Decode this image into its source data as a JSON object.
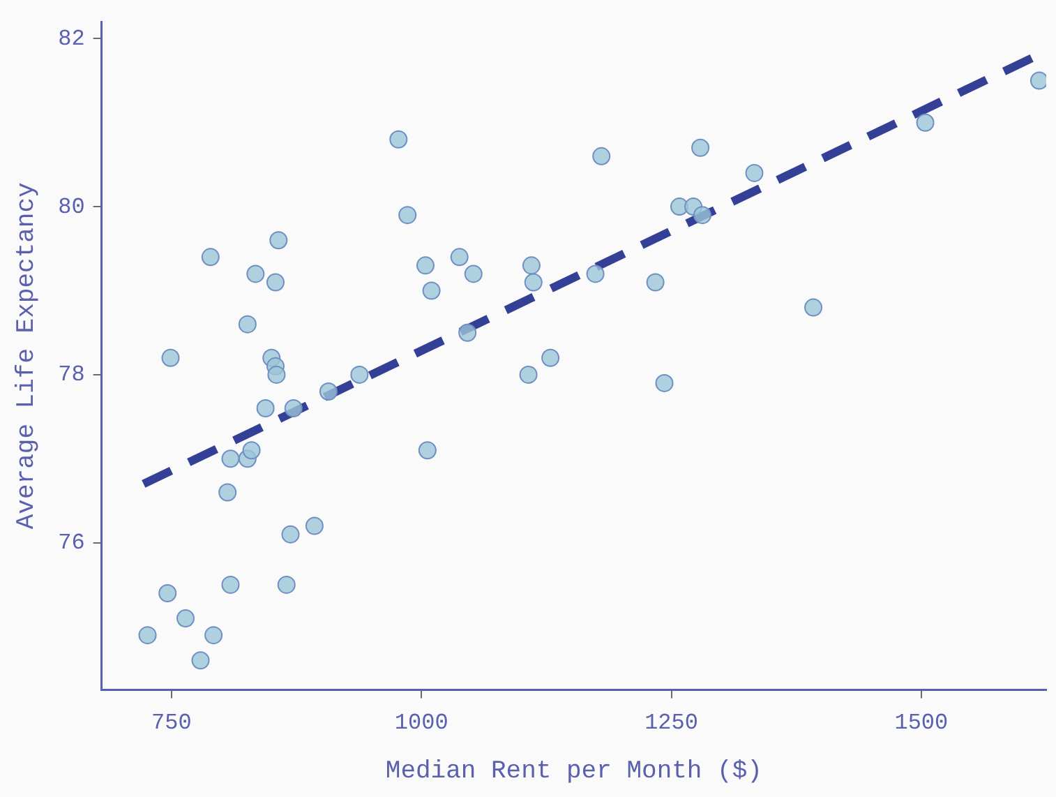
{
  "chart_data": {
    "type": "scatter",
    "xlabel": "Median Rent per Month ($)",
    "ylabel": "Average Life Expectancy",
    "xlim": [
      680,
      1625
    ],
    "ylim": [
      74.25,
      82.2
    ],
    "xticks": [
      750,
      1000,
      1250,
      1500
    ],
    "yticks": [
      76,
      78,
      80,
      82
    ],
    "grid": false,
    "legend": false,
    "marker": "circle",
    "series": [
      {
        "type": "scatter",
        "color": "#9cc6d8",
        "x": [
          726,
          746,
          749,
          764,
          779,
          789,
          792,
          806,
          809,
          809,
          826,
          826,
          830,
          834,
          844,
          850,
          854,
          854,
          855,
          857,
          865,
          869,
          872,
          893,
          907,
          938,
          977,
          986,
          1004,
          1006,
          1010,
          1038,
          1046,
          1052,
          1107,
          1110,
          1112,
          1129,
          1174,
          1180,
          1234,
          1243,
          1258,
          1272,
          1281,
          1279,
          1333,
          1392,
          1504,
          1618
        ],
        "values": [
          74.9,
          75.4,
          78.2,
          75.1,
          74.6,
          79.4,
          74.9,
          76.6,
          77.0,
          75.5,
          78.6,
          77.0,
          77.1,
          79.2,
          77.6,
          78.2,
          79.1,
          78.1,
          78.0,
          79.6,
          75.5,
          76.1,
          77.6,
          76.2,
          77.8,
          78.0,
          80.8,
          79.9,
          79.3,
          77.1,
          79.0,
          79.4,
          78.5,
          79.2,
          78.0,
          79.3,
          79.1,
          78.2,
          79.2,
          80.6,
          79.1,
          77.9,
          80.0,
          80.0,
          79.9,
          80.7,
          80.4,
          78.8,
          81.0,
          81.5
        ]
      },
      {
        "type": "line",
        "color": "#343f96",
        "line_style": "dashed",
        "marker": "none",
        "x": [
          722,
          1625
        ],
        "values": [
          76.7,
          81.85
        ]
      }
    ]
  }
}
